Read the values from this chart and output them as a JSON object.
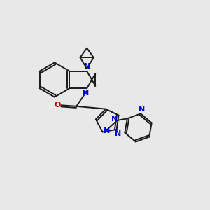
{
  "bg_color": "#e8e8e8",
  "bond_color": "#1a1a1a",
  "n_color": "#0000ee",
  "o_color": "#cc0000",
  "line_width": 1.4,
  "figsize": [
    3.0,
    3.0
  ],
  "dpi": 100,
  "xlim": [
    0,
    10
  ],
  "ylim": [
    0,
    10
  ]
}
